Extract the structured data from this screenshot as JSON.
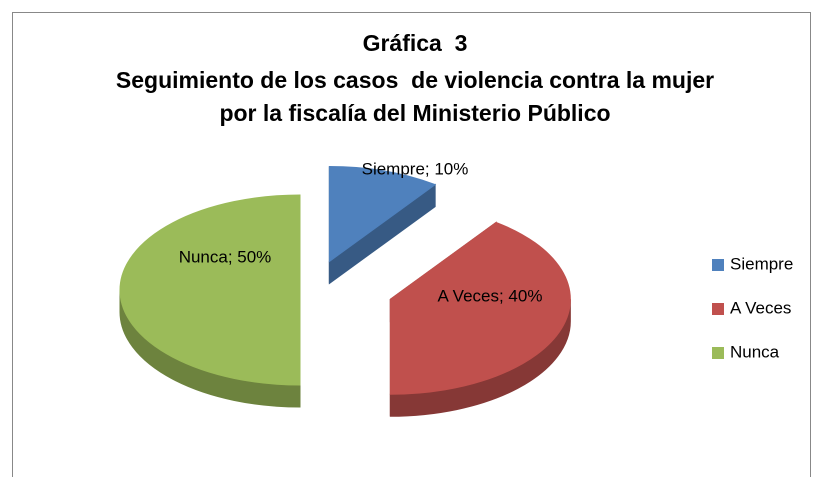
{
  "chart_data": {
    "type": "pie",
    "title": "Gráfica  3",
    "subtitle": "Seguimiento de los casos  de violencia contra la mujer  por la fiscalía del Ministerio Público",
    "categories": [
      "Siempre",
      "A Veces",
      "Nunca"
    ],
    "values": [
      10,
      40,
      50
    ],
    "value_labels": [
      "Siempre; 10%",
      "A Veces; 40%",
      "Nunca; 50%"
    ],
    "colors": [
      "#4f81bd",
      "#c0504d",
      "#9bbb59"
    ],
    "legend": "right"
  }
}
